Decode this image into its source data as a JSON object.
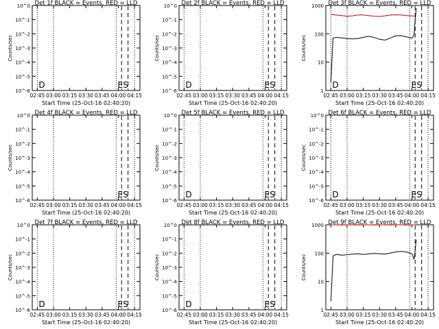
{
  "chart_data": [
    {
      "type": "line",
      "title": "Det 1f BLACK = Events, RED = LLD",
      "xlabel": "Start Time (25-Oct-16 02:40:20)",
      "ylabel": "Counts/sec",
      "x_ticks": [
        "02:45",
        "03:00",
        "03:15",
        "03:30",
        "03:45",
        "04:00",
        "04:15"
      ],
      "y_ticks": [
        "10^0",
        "10^-1",
        "10^-2",
        "10^-3",
        "10^-4",
        "10^-5",
        "10^-6"
      ],
      "y_scale": "log",
      "markers": [
        {
          "label": "D",
          "style": "dotted",
          "x": "02:45"
        },
        {
          "label": "",
          "style": "dotted",
          "x": "03:00"
        },
        {
          "label": "E",
          "style": "dotted",
          "x": "03:58"
        },
        {
          "label": "S",
          "style": "dashed",
          "x": "04:03"
        },
        {
          "label": "",
          "style": "dashed",
          "x": "04:09"
        },
        {
          "label": "",
          "style": "dotted",
          "x": "04:15"
        }
      ],
      "series": []
    },
    {
      "type": "line",
      "title": "Det 2f BLACK = Events, RED = LLD",
      "xlabel": "Start Time (25-Oct-16 02:40:20)",
      "ylabel": "Counts/sec",
      "x_ticks": [
        "02:45",
        "03:00",
        "03:15",
        "03:30",
        "03:45",
        "04:00",
        "04:15"
      ],
      "y_ticks": [
        "10^0",
        "10^-1",
        "10^-2",
        "10^-3",
        "10^-4",
        "10^-5",
        "10^-6"
      ],
      "y_scale": "log",
      "markers": [
        {
          "label": "D",
          "style": "dotted",
          "x": "02:45"
        },
        {
          "label": "",
          "style": "dotted",
          "x": "03:00"
        },
        {
          "label": "E",
          "style": "dotted",
          "x": "03:58"
        },
        {
          "label": "S",
          "style": "dashed",
          "x": "04:03"
        },
        {
          "label": "",
          "style": "dashed",
          "x": "04:09"
        },
        {
          "label": "",
          "style": "dotted",
          "x": "04:15"
        }
      ],
      "series": []
    },
    {
      "type": "line",
      "title": "Det 3f BLACK = Events, RED = LLD",
      "xlabel": "Start Time (25-Oct-16 02:40:20)",
      "ylabel": "Counts/sec",
      "x_ticks": [
        "02:45",
        "03:00",
        "03:15",
        "03:30",
        "03:45",
        "04:00",
        "04:15"
      ],
      "y_ticks": [
        "1",
        "10",
        "100",
        "1000"
      ],
      "y_scale": "log",
      "markers": [
        {
          "label": "D",
          "style": "dotted",
          "x": "02:45"
        },
        {
          "label": "",
          "style": "dotted",
          "x": "03:00"
        },
        {
          "label": "E",
          "style": "dotted",
          "x": "03:58"
        },
        {
          "label": "S",
          "style": "dashed",
          "x": "04:03"
        },
        {
          "label": "",
          "style": "dashed",
          "x": "04:09"
        },
        {
          "label": "",
          "style": "dotted",
          "x": "04:15"
        }
      ],
      "series": [
        {
          "color": "#d00000",
          "x": [
            "02:45",
            "02:50",
            "02:55",
            "03:00",
            "03:05",
            "03:10",
            "03:15",
            "03:20",
            "03:25",
            "03:30",
            "03:35",
            "03:40",
            "03:45",
            "03:50",
            "03:55",
            "04:00",
            "04:03"
          ],
          "values": [
            480,
            460,
            440,
            420,
            430,
            460,
            460,
            440,
            420,
            410,
            430,
            460,
            470,
            460,
            440,
            430,
            420
          ]
        },
        {
          "color": "#000000",
          "x": [
            "02:45",
            "02:47",
            "02:50",
            "02:55",
            "03:00",
            "03:05",
            "03:10",
            "03:15",
            "03:20",
            "03:25",
            "03:30",
            "03:35",
            "03:40",
            "03:45",
            "03:50",
            "03:55",
            "04:00",
            "04:02",
            "04:03",
            "04:04"
          ],
          "values": [
            2,
            70,
            75,
            72,
            68,
            66,
            68,
            75,
            82,
            74,
            64,
            60,
            70,
            85,
            86,
            78,
            70,
            90,
            300,
            800
          ]
        }
      ]
    },
    {
      "type": "line",
      "title": "Det 4f BLACK = Events, RED = LLD",
      "xlabel": "Start Time (25-Oct-16 02:40:20)",
      "ylabel": "Counts/sec",
      "x_ticks": [
        "02:45",
        "03:00",
        "03:15",
        "03:30",
        "03:45",
        "04:00",
        "04:15"
      ],
      "y_ticks": [
        "10^0",
        "10^-1",
        "10^-2",
        "10^-3",
        "10^-4",
        "10^-5",
        "10^-6"
      ],
      "y_scale": "log",
      "markers": [
        {
          "label": "",
          "style": "dotted",
          "x": "03:00"
        },
        {
          "label": "E",
          "style": "dotted",
          "x": "03:58"
        },
        {
          "label": "S",
          "style": "dashed",
          "x": "04:03"
        },
        {
          "label": "",
          "style": "dashed",
          "x": "04:09"
        },
        {
          "label": "",
          "style": "dotted",
          "x": "04:15"
        }
      ],
      "series": []
    },
    {
      "type": "line",
      "title": "Det 5f BLACK = Events, RED = LLD",
      "xlabel": "Start Time (25-Oct-16 02:40:20)",
      "ylabel": "Counts/sec",
      "x_ticks": [
        "02:45",
        "03:00",
        "03:15",
        "03:30",
        "03:45",
        "04:00",
        "04:15"
      ],
      "y_ticks": [
        "10^0",
        "10^-1",
        "10^-2",
        "10^-3",
        "10^-4",
        "10^-5",
        "10^-6"
      ],
      "y_scale": "log",
      "markers": [
        {
          "label": "D",
          "style": "dotted",
          "x": "02:45"
        },
        {
          "label": "",
          "style": "dotted",
          "x": "03:00"
        },
        {
          "label": "E",
          "style": "dotted",
          "x": "03:58"
        },
        {
          "label": "S",
          "style": "dashed",
          "x": "04:03"
        },
        {
          "label": "",
          "style": "dashed",
          "x": "04:09"
        },
        {
          "label": "",
          "style": "dotted",
          "x": "04:15"
        }
      ],
      "series": []
    },
    {
      "type": "line",
      "title": "Det 6f BLACK = Events, RED = LLD",
      "xlabel": "Start Time (25-Oct-16 02:40:20)",
      "ylabel": "Counts/sec",
      "x_ticks": [
        "02:45",
        "03:00",
        "03:15",
        "03:30",
        "03:45",
        "04:00",
        "04:15"
      ],
      "y_ticks": [
        "10^0",
        "10^-1",
        "10^-2",
        "10^-3",
        "10^-4",
        "10^-5",
        "10^-6"
      ],
      "y_scale": "log",
      "markers": [
        {
          "label": "D",
          "style": "dotted",
          "x": "02:45"
        },
        {
          "label": "",
          "style": "dotted",
          "x": "03:00"
        },
        {
          "label": "E",
          "style": "dotted",
          "x": "03:58"
        },
        {
          "label": "S",
          "style": "dashed",
          "x": "04:03"
        },
        {
          "label": "",
          "style": "dashed",
          "x": "04:09"
        },
        {
          "label": "",
          "style": "dotted",
          "x": "04:15"
        }
      ],
      "series": []
    },
    {
      "type": "line",
      "title": "Det 7f BLACK = Events, RED = LLD",
      "xlabel": "Start Time (25-Oct-16 02:40:20)",
      "ylabel": "Counts/sec",
      "x_ticks": [
        "02:45",
        "03:00",
        "03:15",
        "03:30",
        "03:45",
        "04:00",
        "04:15"
      ],
      "y_ticks": [
        "10^0",
        "10^-1",
        "10^-2",
        "10^-3",
        "10^-4",
        "10^-5",
        "10^-6"
      ],
      "y_scale": "log",
      "markers": [
        {
          "label": "D",
          "style": "dotted",
          "x": "02:45"
        },
        {
          "label": "",
          "style": "dotted",
          "x": "03:00"
        },
        {
          "label": "E",
          "style": "dotted",
          "x": "03:58"
        },
        {
          "label": "S",
          "style": "dashed",
          "x": "04:03"
        },
        {
          "label": "",
          "style": "dashed",
          "x": "04:09"
        },
        {
          "label": "",
          "style": "dotted",
          "x": "04:15"
        }
      ],
      "series": []
    },
    {
      "type": "line",
      "title": "Det 8f BLACK = Events, RED = LLD",
      "xlabel": "Start Time (25-Oct-16 02:40:20)",
      "ylabel": "Counts/sec",
      "x_ticks": [
        "02:45",
        "03:00",
        "03:15",
        "03:30",
        "03:45",
        "04:00",
        "04:15"
      ],
      "y_ticks": [
        "10^0",
        "10^-1",
        "10^-2",
        "10^-3",
        "10^-4",
        "10^-5",
        "10^-6"
      ],
      "y_scale": "log",
      "markers": [
        {
          "label": "D",
          "style": "dotted",
          "x": "02:45"
        },
        {
          "label": "",
          "style": "dotted",
          "x": "03:00"
        },
        {
          "label": "E",
          "style": "dotted",
          "x": "03:58"
        },
        {
          "label": "S",
          "style": "dashed",
          "x": "04:03"
        },
        {
          "label": "",
          "style": "dashed",
          "x": "04:09"
        },
        {
          "label": "",
          "style": "dotted",
          "x": "04:15"
        }
      ],
      "series": []
    },
    {
      "type": "line",
      "title": "Det 9f BLACK = Events, RED = LLD",
      "xlabel": "Start Time (25-Oct-16 02:40:20)",
      "ylabel": "Counts/sec",
      "x_ticks": [
        "02:45",
        "03:00",
        "03:15",
        "03:30",
        "03:45",
        "04:00",
        "04:15"
      ],
      "y_ticks": [
        "1",
        "10",
        "100",
        "1000"
      ],
      "y_scale": "log",
      "markers": [
        {
          "label": "",
          "style": "dotted",
          "x": "03:00"
        },
        {
          "label": "",
          "style": "dotted",
          "x": "03:58"
        },
        {
          "label": "",
          "style": "dashed",
          "x": "04:03"
        },
        {
          "label": "",
          "style": "dashed",
          "x": "04:09"
        },
        {
          "label": "",
          "style": "dotted",
          "x": "04:15"
        }
      ],
      "series": [
        {
          "color": "#d00000",
          "x": [
            "02:45",
            "02:50",
            "02:55",
            "03:00",
            "03:05",
            "03:10",
            "03:15",
            "03:20",
            "03:25",
            "03:30",
            "03:35",
            "03:40",
            "03:45",
            "03:50",
            "03:55",
            "04:00",
            "04:03"
          ],
          "values": [
            1000,
            1000,
            990,
            1000,
            1000,
            990,
            1000,
            1000,
            990,
            1000,
            1000,
            990,
            1000,
            1000,
            990,
            1000,
            1000
          ]
        },
        {
          "color": "#000000",
          "x": [
            "02:45",
            "02:47",
            "02:50",
            "02:55",
            "03:00",
            "03:05",
            "03:10",
            "03:15",
            "03:20",
            "03:25",
            "03:30",
            "03:35",
            "03:40",
            "03:45",
            "03:50",
            "03:55",
            "04:00",
            "04:02",
            "04:03",
            "04:04"
          ],
          "values": [
            2,
            80,
            90,
            85,
            88,
            92,
            95,
            90,
            94,
            98,
            95,
            92,
            100,
            110,
            115,
            110,
            95,
            60,
            120,
            300
          ]
        }
      ]
    }
  ]
}
